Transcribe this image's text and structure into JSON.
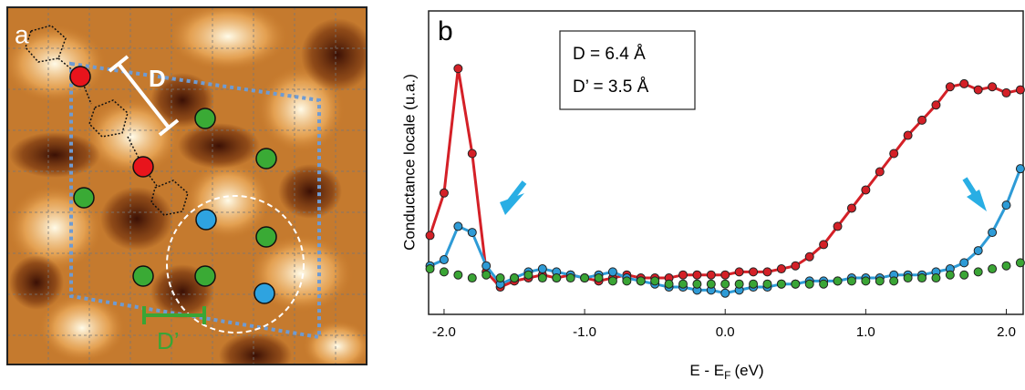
{
  "image_panel": {
    "label": "a",
    "distance_label": "D",
    "distance_label_2": "D’"
  },
  "chart_data": {
    "type": "line",
    "panel_label": "b",
    "annotations": [
      "D  = 6.4 Å",
      "D’ = 3.5 Å"
    ],
    "y_label": "Conductance locale (u.a.)",
    "x_label": "E - E",
    "x_label_sub": "F",
    "x_label_end": "(eV)",
    "xlim": [
      -2.11,
      2.12
    ],
    "ylim": [
      0,
      100
    ],
    "xticks": [
      {
        "value": -2,
        "label": "-2.0"
      },
      {
        "value": -1,
        "label": "-1.0"
      },
      {
        "value": 0,
        "label": "0.0"
      },
      {
        "value": 1,
        "label": "1.0"
      },
      {
        "value": 2,
        "label": "2.0"
      }
    ],
    "x": [
      -2.1,
      -2.0,
      -1.9,
      -1.8,
      -1.7,
      -1.6,
      -1.5,
      -1.4,
      -1.3,
      -1.2,
      -1.1,
      -1.0,
      -0.9,
      -0.8,
      -0.7,
      -0.6,
      -0.5,
      -0.4,
      -0.3,
      -0.2,
      -0.1,
      0.0,
      0.1,
      0.2,
      0.3,
      0.4,
      0.5,
      0.6,
      0.7,
      0.8,
      0.9,
      1.0,
      1.1,
      1.2,
      1.3,
      1.4,
      1.5,
      1.6,
      1.7,
      1.8,
      1.9,
      2.0,
      2.1
    ],
    "series": [
      {
        "color": "#d42027",
        "line": true,
        "values": [
          26,
          40,
          81,
          53,
          14,
          9,
          11,
          12,
          13,
          12,
          13,
          12,
          11,
          12,
          13,
          12,
          12,
          12,
          13,
          13,
          13,
          13,
          14,
          14,
          14,
          15,
          16,
          19,
          23,
          29,
          35,
          41,
          47,
          53,
          59,
          64,
          69,
          75,
          76,
          74,
          75,
          73,
          74
        ]
      },
      {
        "color": "#2e9bd6",
        "line": true,
        "values": [
          16,
          18,
          29,
          27,
          16,
          10,
          12,
          14,
          15,
          14,
          13,
          12,
          13,
          14,
          12,
          11,
          10,
          9,
          9,
          8,
          8,
          7,
          8,
          9,
          9,
          10,
          10,
          11,
          11,
          11,
          12,
          12,
          12,
          13,
          13,
          13,
          14,
          15,
          17,
          21,
          27,
          36,
          48
        ]
      },
      {
        "color": "#3aa535",
        "line": false,
        "values": [
          15,
          14,
          13,
          12,
          13,
          12,
          12,
          13,
          12,
          12,
          12,
          12,
          12,
          11,
          11,
          11,
          11,
          10,
          10,
          10,
          10,
          10,
          10,
          10,
          10,
          10,
          10,
          10,
          10,
          11,
          11,
          11,
          11,
          11,
          12,
          12,
          12,
          13,
          13,
          14,
          15,
          16,
          17
        ]
      }
    ]
  }
}
